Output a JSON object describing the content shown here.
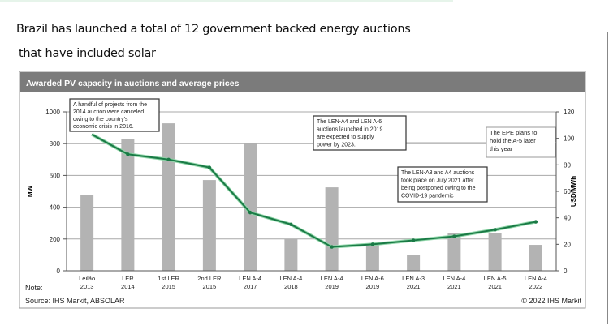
{
  "headline": {
    "line1": "Brazil has launched a total of 12 government backed energy auctions",
    "line2": "that have included solar"
  },
  "chart_data": {
    "type": "bar",
    "title": "Awarded PV capacity in auctions and average prices",
    "categories": [
      [
        "Leilão",
        "2013"
      ],
      [
        "LER",
        "2014"
      ],
      [
        "1st LER",
        "2015"
      ],
      [
        "2nd LER",
        "2015"
      ],
      [
        "LEN A-4",
        "2017"
      ],
      [
        "LEN A-4",
        "2018"
      ],
      [
        "LEN A-4",
        "2019"
      ],
      [
        "LEN A-6",
        "2019"
      ],
      [
        "LEN A-3",
        "2021"
      ],
      [
        "LEN A-4",
        "2021"
      ],
      [
        "LEN A-5",
        "2021"
      ],
      [
        "LEN A-4",
        "2022"
      ]
    ],
    "series": [
      {
        "type": "bar",
        "axis": "left",
        "values": [
          475,
          830,
          928,
          571,
          800,
          199,
          525,
          170,
          97,
          235,
          235,
          163
        ],
        "color": "#b3b3b3"
      },
      {
        "type": "line",
        "axis": "right",
        "values": [
          103,
          88,
          84,
          78,
          44,
          35,
          18,
          20,
          23,
          26,
          31,
          37
        ],
        "color": "#1a7a46"
      }
    ],
    "ylabel": "MW",
    "ylabel_right": "USD/MWh",
    "ylim": [
      0,
      1000
    ],
    "ylim_right": [
      0,
      120
    ],
    "yticks": [
      "0",
      "200",
      "400",
      "600",
      "800",
      "1000"
    ],
    "yticks_right": [
      "0",
      "20",
      "40",
      "60",
      "80",
      "100",
      "120"
    ],
    "grid": true,
    "annotations": [
      {
        "lines": [
          "A handful of projects from the",
          "2014 auction were canceled",
          "owing to the country's",
          "economic crisis in 2016."
        ]
      },
      {
        "lines": [
          "The LEN-A4 and LEN A-6",
          "auctions launched in 2019",
          "are expected to supply",
          "power by 2023."
        ]
      },
      {
        "lines": [
          "The EPE plans to",
          "hold the A-5 later",
          "this year"
        ]
      },
      {
        "lines": [
          "The LEN-A3 and A4 auctions",
          "took place on July 2021 after",
          "being postponed owing to the",
          "COVID-19 pandemic"
        ]
      }
    ],
    "note": "Note:",
    "source": "Source: IHS Markit, ABSOLAR",
    "copyright": "© 2022 IHS Markit"
  }
}
